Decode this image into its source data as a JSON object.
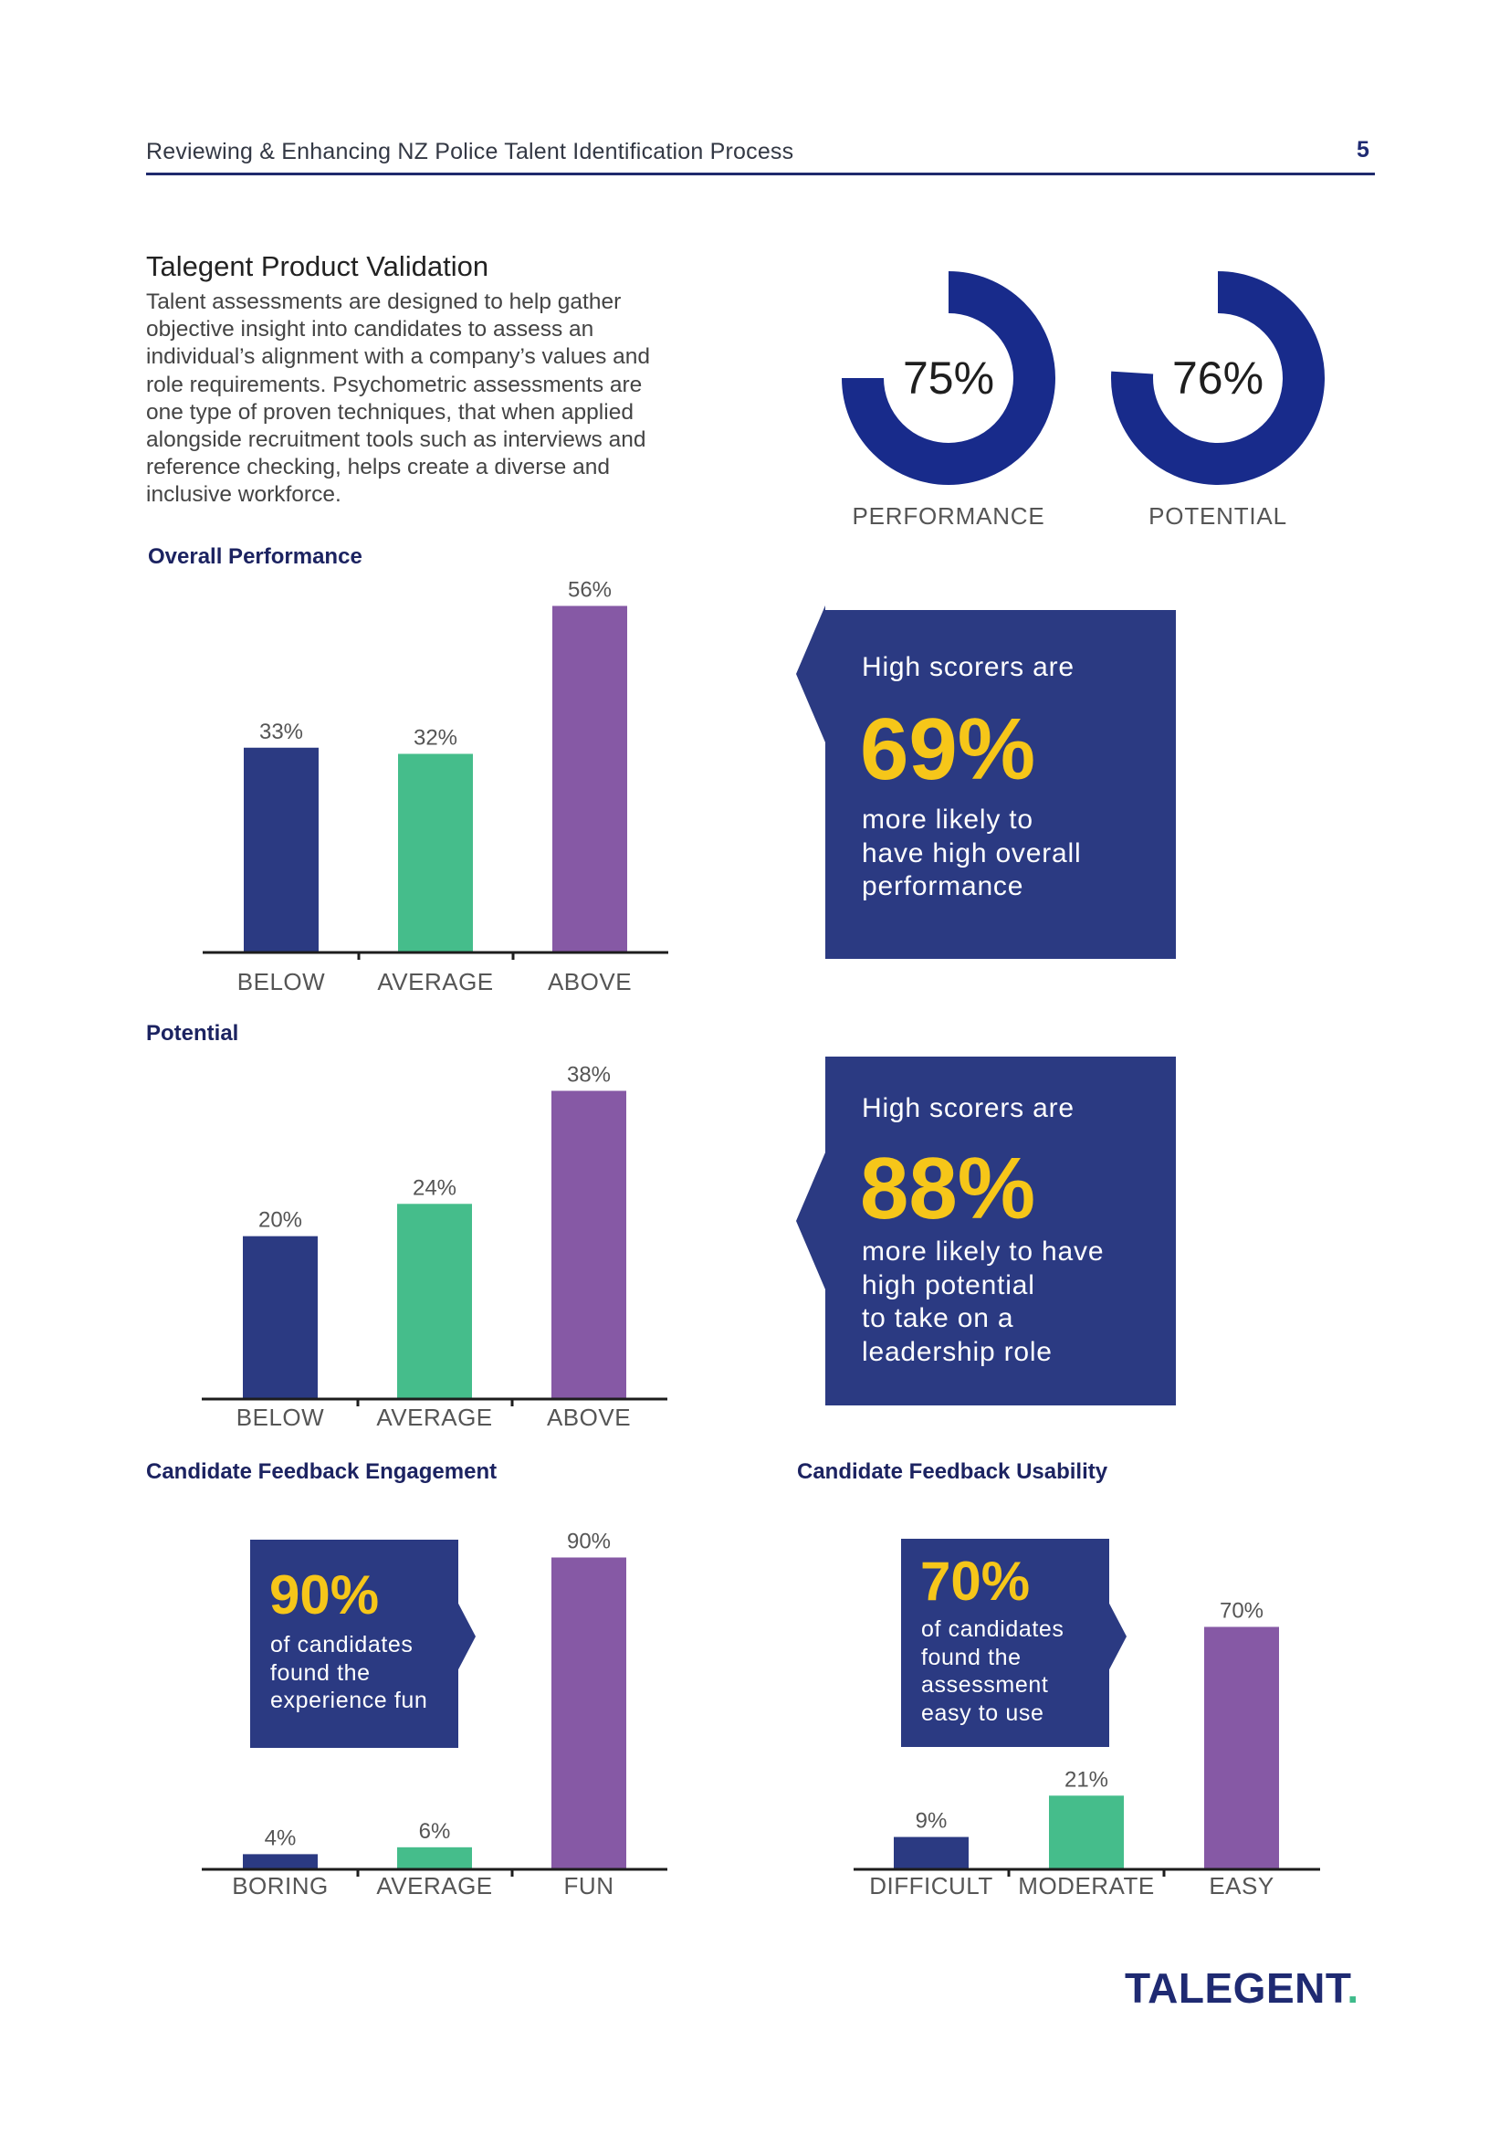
{
  "header": {
    "title": "Reviewing & Enhancing NZ Police Talent Identification Process",
    "page_number": "5"
  },
  "intro": {
    "title": "Talegent Product Validation",
    "lines": [
      "Talent assessments are designed to help gather",
      "objective insight into candidates to assess an",
      "individual’s alignment with a company’s values and",
      "role requirements. Psychometric assessments are",
      "one type of proven techniques, that when applied",
      "alongside recruitment tools such as interviews and",
      "reference checking, helps create a diverse and",
      "inclusive workforce."
    ]
  },
  "colors": {
    "navy": "#2b3a82",
    "green": "#45bd8b",
    "purple": "#8659a5",
    "ring": "#182b8b",
    "yellow": "#f6c619"
  },
  "callouts": {
    "performance": {
      "lead": "High scorers are",
      "big": "69%",
      "lines": [
        "more likely to",
        "have high overall",
        "performance"
      ]
    },
    "potential": {
      "lead": "High scorers are",
      "big": "88%",
      "lines": [
        "more likely to have",
        "high potential",
        "to take on a",
        "leadership role"
      ]
    },
    "engagement": {
      "big": "90%",
      "lines": [
        "of candidates",
        "found the",
        "experience fun"
      ]
    },
    "usability": {
      "big": "70%",
      "lines": [
        "of candidates",
        "found the",
        "assessment",
        "easy to use"
      ]
    }
  },
  "logo": {
    "text": "TALEGENT",
    "dot": "."
  },
  "chart_data": [
    {
      "type": "pie",
      "id": "donut-performance",
      "title": "PERFORMANCE",
      "value": 75,
      "label": "75%"
    },
    {
      "type": "pie",
      "id": "donut-potential",
      "title": "POTENTIAL",
      "value": 76,
      "label": "76%"
    },
    {
      "type": "bar",
      "id": "overall-performance",
      "title": "Overall Performance",
      "categories": [
        "BELOW",
        "AVERAGE",
        "ABOVE"
      ],
      "values": [
        33,
        32,
        56
      ],
      "labels": [
        "33%",
        "32%",
        "56%"
      ],
      "ylim": [
        0,
        56
      ]
    },
    {
      "type": "bar",
      "id": "potential",
      "title": "Potential",
      "categories": [
        "BELOW",
        "AVERAGE",
        "ABOVE"
      ],
      "values": [
        20,
        24,
        38
      ],
      "labels": [
        "20%",
        "24%",
        "38%"
      ],
      "ylim": [
        0,
        38
      ]
    },
    {
      "type": "bar",
      "id": "engagement",
      "title": "Candidate Feedback Engagement",
      "categories": [
        "BORING",
        "AVERAGE",
        "FUN"
      ],
      "values": [
        4,
        6,
        90
      ],
      "labels": [
        "4%",
        "6%",
        "90%"
      ],
      "ylim": [
        0,
        90
      ]
    },
    {
      "type": "bar",
      "id": "usability",
      "title": "Candidate Feedback Usability",
      "categories": [
        "DIFFICULT",
        "MODERATE",
        "EASY"
      ],
      "values": [
        9,
        21,
        70
      ],
      "labels": [
        "9%",
        "21%",
        "70%"
      ],
      "ylim": [
        0,
        70
      ]
    }
  ]
}
